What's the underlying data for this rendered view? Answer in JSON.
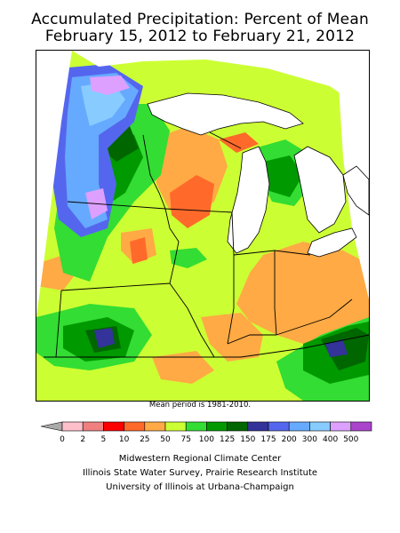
{
  "title": {
    "line1": "Accumulated Precipitation: Percent of Mean",
    "line2": "February 15, 2012 to February 21, 2012"
  },
  "map": {
    "region": "Midwest",
    "variable": "Accumulated precipitation, percent of mean",
    "note": "Mean period is 1981-2010."
  },
  "legend": {
    "units": "percent of mean",
    "bins": [
      {
        "label": "0",
        "color": "#ffc0cb"
      },
      {
        "label": "2",
        "color": "#f08080"
      },
      {
        "label": "5",
        "color": "#ff0000"
      },
      {
        "label": "10",
        "color": "#ff6a2a"
      },
      {
        "label": "25",
        "color": "#ffaa44"
      },
      {
        "label": "50",
        "color": "#ccff33"
      },
      {
        "label": "75",
        "color": "#33dd33"
      },
      {
        "label": "100",
        "color": "#009900"
      },
      {
        "label": "125",
        "color": "#006600"
      },
      {
        "label": "150",
        "color": "#333399"
      },
      {
        "label": "175",
        "color": "#5566ee"
      },
      {
        "label": "200",
        "color": "#66aaff"
      },
      {
        "label": "300",
        "color": "#88ccff"
      },
      {
        "label": "400",
        "color": "#dda0ff"
      },
      {
        "label": "500",
        "color": "#aa44cc"
      }
    ],
    "below_min_color": "#aaaaaa"
  },
  "credits": {
    "line1": "Midwestern Regional Climate Center",
    "line2": "Illinois State Water Survey, Prairie Research Institute",
    "line3": "University of Illinois at Urbana-Champaign"
  },
  "colors": {
    "lake": "#ffffff",
    "outside": "#ffffff",
    "boundary": "#000000"
  }
}
